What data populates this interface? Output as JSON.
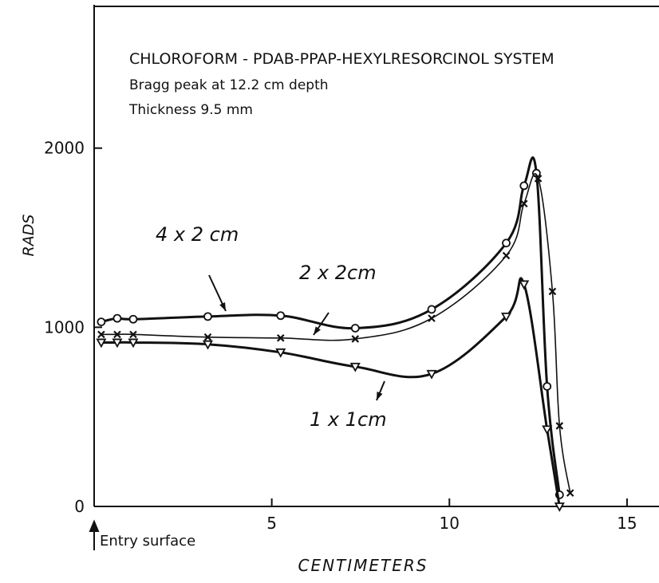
{
  "chart_data": {
    "type": "line",
    "title": "CHLOROFORM - PDAB-PPAP-HEXYLRESORCINOL SYSTEM",
    "subtitle": [
      "Bragg peak at 12.2 cm depth",
      "Thickness 9.5 mm"
    ],
    "xlabel": "CENTIMETERS",
    "ylabel": "RADS",
    "annotation": "Entry surface",
    "xlim": [
      0,
      15.9
    ],
    "ylim": [
      0,
      2800
    ],
    "xticks": [
      0,
      5,
      10,
      15
    ],
    "yticks": [
      0,
      1000,
      2000
    ],
    "color": "#111111",
    "series": [
      {
        "name": "4 x 2 cm",
        "marker": "circle",
        "x": [
          0.2,
          0.65,
          1.1,
          3.2,
          5.25,
          7.35,
          9.5,
          11.6,
          12.1,
          12.45,
          12.75,
          13.1
        ],
        "values": [
          1030,
          1050,
          1045,
          1060,
          1065,
          995,
          1100,
          1470,
          1790,
          1860,
          670,
          65
        ]
      },
      {
        "name": "2 x 2cm",
        "marker": "x",
        "x": [
          0.2,
          0.65,
          1.1,
          3.2,
          5.25,
          7.35,
          9.5,
          11.6,
          12.1,
          12.5,
          12.9,
          13.1,
          13.4
        ],
        "values": [
          960,
          960,
          960,
          945,
          940,
          935,
          1050,
          1400,
          1690,
          1830,
          1200,
          450,
          75
        ]
      },
      {
        "name": "1 x 1cm",
        "marker": "triangle",
        "x": [
          0.2,
          0.65,
          1.1,
          3.2,
          5.25,
          7.35,
          9.5,
          11.6,
          12.1,
          12.75,
          13.1
        ],
        "values": [
          915,
          915,
          915,
          905,
          860,
          780,
          740,
          1060,
          1240,
          430,
          0
        ]
      }
    ]
  }
}
